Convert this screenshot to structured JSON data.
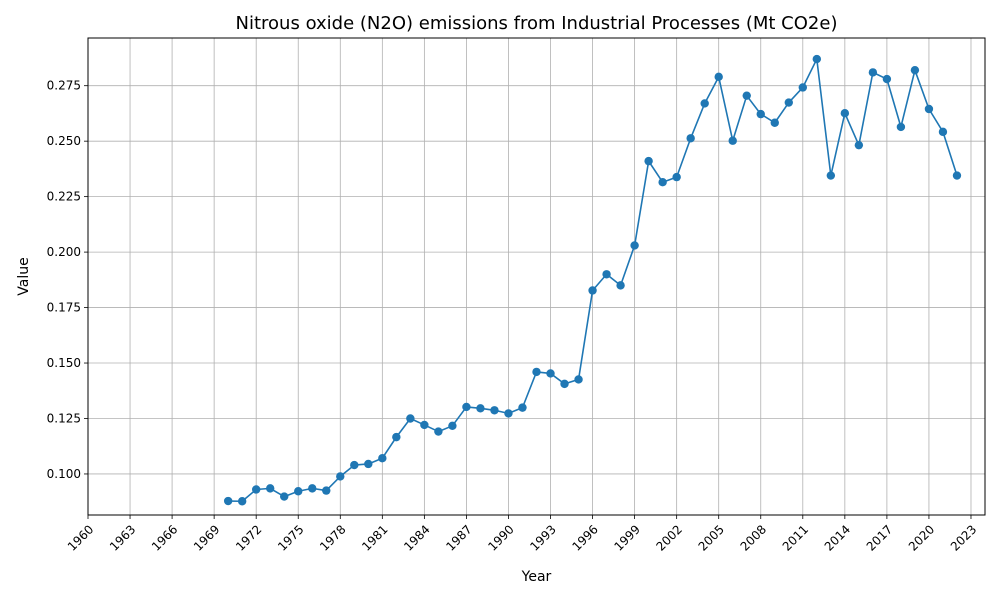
{
  "chart_data": {
    "type": "line",
    "title": "Nitrous oxide (N2O) emissions from Industrial Processes (Mt CO2e)",
    "xlabel": "Year",
    "ylabel": "Value",
    "xlim": [
      1960,
      2024
    ],
    "ylim": [
      0.0815,
      0.2965
    ],
    "x_ticks": [
      1960,
      1963,
      1966,
      1969,
      1972,
      1975,
      1978,
      1981,
      1984,
      1987,
      1990,
      1993,
      1996,
      1999,
      2002,
      2005,
      2008,
      2011,
      2014,
      2017,
      2020,
      2023
    ],
    "y_ticks": [
      0.1,
      0.125,
      0.15,
      0.175,
      0.2,
      0.225,
      0.25,
      0.275
    ],
    "y_tick_labels": [
      "0.100",
      "0.125",
      "0.150",
      "0.175",
      "0.200",
      "0.225",
      "0.250",
      "0.275"
    ],
    "grid": true,
    "series": [
      {
        "color": "#1f77b4",
        "x": [
          1970,
          1971,
          1972,
          1973,
          1974,
          1975,
          1976,
          1977,
          1978,
          1979,
          1980,
          1981,
          1982,
          1983,
          1984,
          1985,
          1986,
          1987,
          1988,
          1989,
          1990,
          1991,
          1992,
          1993,
          1994,
          1995,
          1996,
          1997,
          1998,
          1999,
          2000,
          2001,
          2002,
          2003,
          2004,
          2005,
          2006,
          2007,
          2008,
          2009,
          2010,
          2011,
          2012,
          2013,
          2014,
          2015,
          2016,
          2017,
          2018,
          2019,
          2020,
          2021,
          2022
        ],
        "values": [
          0.0878,
          0.0877,
          0.093,
          0.0935,
          0.0898,
          0.0922,
          0.0935,
          0.0925,
          0.0989,
          0.104,
          0.1045,
          0.1071,
          0.1166,
          0.125,
          0.1221,
          0.1191,
          0.1217,
          0.1302,
          0.1296,
          0.1287,
          0.1273,
          0.1299,
          0.146,
          0.1453,
          0.1406,
          0.1426,
          0.1827,
          0.19,
          0.185,
          0.203,
          0.241,
          0.2315,
          0.2338,
          0.2513,
          0.267,
          0.279,
          0.2502,
          0.2705,
          0.2622,
          0.2583,
          0.2674,
          0.2742,
          0.287,
          0.2345,
          0.2626,
          0.2482,
          0.281,
          0.278,
          0.2564,
          0.282,
          0.2645,
          0.2542,
          0.2345
        ]
      }
    ]
  }
}
